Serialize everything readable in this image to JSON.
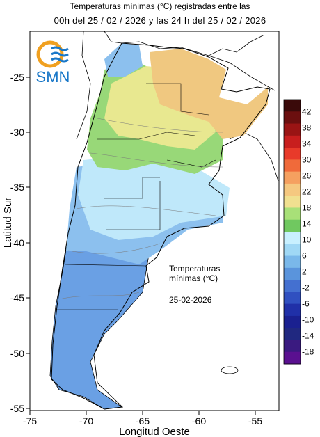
{
  "title": {
    "line1": "Temperaturas mínimas (°C) registradas entre las",
    "line2": "00h del 25 / 02 / 2026 y las 24 h del 25 / 02 / 2026"
  },
  "logo": {
    "text": "SMN"
  },
  "axes": {
    "xlabel": "Longitud Oeste",
    "ylabel": "Latitud Sur",
    "x_ticks": [
      "-75",
      "-70",
      "-65",
      "-60",
      "-55"
    ],
    "y_ticks": [
      "-25",
      "-30",
      "-35",
      "-40",
      "-45",
      "-50",
      "-55"
    ]
  },
  "annotation": {
    "line1": "Temperaturas",
    "line2": "mínimas (°C)",
    "date": "25-02-2026"
  },
  "legend": {
    "labels": [
      "42",
      "38",
      "34",
      "30",
      "26",
      "22",
      "18",
      "14",
      "10",
      "6",
      "2",
      "-2",
      "-6",
      "-10",
      "-14",
      "-18"
    ],
    "colors": [
      "#3a0a0a",
      "#6b0f0f",
      "#9a1414",
      "#c81e1e",
      "#e83a2a",
      "#f06a3a",
      "#f5a060",
      "#f5c880",
      "#f0e090",
      "#a8e078",
      "#70c860",
      "#c8f0ff",
      "#a0d8f5",
      "#7ab8ea",
      "#5a94dc",
      "#4470d0",
      "#3050c0",
      "#2030a8",
      "#1a2090",
      "#202880",
      "#3a1a80",
      "#5a1090"
    ]
  },
  "colors": {
    "warm": "#f0c880",
    "mid": "#e8e890",
    "green": "#98d878",
    "lightblue": "#bfe8fa",
    "blue": "#8cc0ee",
    "darkblue": "#6aa0e4"
  }
}
